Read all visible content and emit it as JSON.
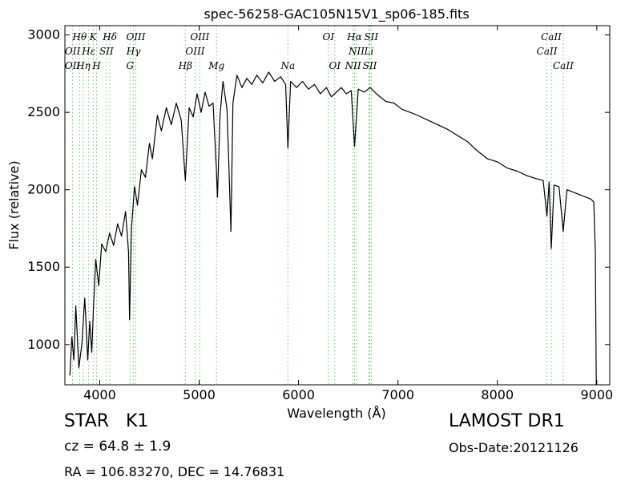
{
  "chart_data": {
    "type": "line",
    "title": "spec-56258-GAC105N15V1_sp06-185.fits",
    "xlabel": "Wavelength (Å)",
    "ylabel": "Flux (relative)",
    "xlim": [
      3650,
      9130
    ],
    "ylim": [
      740,
      3060
    ],
    "x_ticks": [
      4000,
      5000,
      6000,
      7000,
      8000,
      9000
    ],
    "y_ticks": [
      1000,
      1500,
      2000,
      2500,
      3000
    ],
    "x_tick_labels": [
      "4000",
      "5000",
      "6000",
      "7000",
      "8000",
      "9000"
    ],
    "y_tick_labels": [
      "1000",
      "1500",
      "2000",
      "2500",
      "3000"
    ],
    "grid": false,
    "series": [
      {
        "color": "#000000",
        "points": [
          [
            3700,
            800
          ],
          [
            3720,
            1050
          ],
          [
            3740,
            900
          ],
          [
            3760,
            1250
          ],
          [
            3790,
            850
          ],
          [
            3820,
            1000
          ],
          [
            3850,
            1300
          ],
          [
            3880,
            900
          ],
          [
            3900,
            1150
          ],
          [
            3920,
            950
          ],
          [
            3940,
            1280
          ],
          [
            3960,
            1550
          ],
          [
            3990,
            1380
          ],
          [
            4020,
            1650
          ],
          [
            4060,
            1600
          ],
          [
            4100,
            1720
          ],
          [
            4140,
            1640
          ],
          [
            4180,
            1780
          ],
          [
            4220,
            1700
          ],
          [
            4260,
            1860
          ],
          [
            4290,
            1600
          ],
          [
            4300,
            1160
          ],
          [
            4320,
            1750
          ],
          [
            4350,
            2020
          ],
          [
            4380,
            1900
          ],
          [
            4420,
            2130
          ],
          [
            4460,
            2080
          ],
          [
            4500,
            2300
          ],
          [
            4530,
            2200
          ],
          [
            4580,
            2480
          ],
          [
            4620,
            2380
          ],
          [
            4670,
            2530
          ],
          [
            4720,
            2420
          ],
          [
            4770,
            2560
          ],
          [
            4820,
            2450
          ],
          [
            4861,
            2060
          ],
          [
            4900,
            2530
          ],
          [
            4940,
            2470
          ],
          [
            4980,
            2620
          ],
          [
            5020,
            2500
          ],
          [
            5060,
            2630
          ],
          [
            5100,
            2540
          ],
          [
            5140,
            2560
          ],
          [
            5172,
            2150
          ],
          [
            5184,
            1950
          ],
          [
            5210,
            2480
          ],
          [
            5240,
            2700
          ],
          [
            5280,
            2520
          ],
          [
            5300,
            2150
          ],
          [
            5320,
            1730
          ],
          [
            5340,
            2560
          ],
          [
            5380,
            2740
          ],
          [
            5430,
            2660
          ],
          [
            5480,
            2720
          ],
          [
            5530,
            2680
          ],
          [
            5580,
            2740
          ],
          [
            5640,
            2690
          ],
          [
            5700,
            2760
          ],
          [
            5760,
            2700
          ],
          [
            5820,
            2730
          ],
          [
            5870,
            2680
          ],
          [
            5893,
            2270
          ],
          [
            5920,
            2700
          ],
          [
            5980,
            2660
          ],
          [
            6040,
            2700
          ],
          [
            6100,
            2650
          ],
          [
            6160,
            2680
          ],
          [
            6220,
            2620
          ],
          [
            6280,
            2660
          ],
          [
            6330,
            2600
          ],
          [
            6380,
            2630
          ],
          [
            6430,
            2660
          ],
          [
            6480,
            2620
          ],
          [
            6530,
            2640
          ],
          [
            6563,
            2280
          ],
          [
            6600,
            2650
          ],
          [
            6660,
            2630
          ],
          [
            6720,
            2660
          ],
          [
            6800,
            2610
          ],
          [
            6880,
            2570
          ],
          [
            6960,
            2560
          ],
          [
            7040,
            2520
          ],
          [
            7120,
            2500
          ],
          [
            7200,
            2480
          ],
          [
            7300,
            2450
          ],
          [
            7400,
            2420
          ],
          [
            7500,
            2390
          ],
          [
            7600,
            2350
          ],
          [
            7700,
            2310
          ],
          [
            7800,
            2250
          ],
          [
            7900,
            2200
          ],
          [
            8000,
            2180
          ],
          [
            8100,
            2140
          ],
          [
            8200,
            2120
          ],
          [
            8300,
            2090
          ],
          [
            8400,
            2070
          ],
          [
            8460,
            2060
          ],
          [
            8498,
            1830
          ],
          [
            8520,
            2050
          ],
          [
            8542,
            1620
          ],
          [
            8570,
            2030
          ],
          [
            8620,
            2020
          ],
          [
            8662,
            1730
          ],
          [
            8700,
            2000
          ],
          [
            8780,
            1980
          ],
          [
            8860,
            1960
          ],
          [
            8940,
            1940
          ],
          [
            8970,
            1920
          ],
          [
            8985,
            1600
          ],
          [
            8995,
            740
          ]
        ]
      }
    ],
    "line_markers": [
      {
        "label": "Hθ",
        "x": 3798,
        "row": 1
      },
      {
        "label": "K",
        "x": 3934,
        "row": 1
      },
      {
        "label": "Hδ",
        "x": 4102,
        "row": 1
      },
      {
        "label": "OIII",
        "x": 4363,
        "row": 1
      },
      {
        "label": "OIII",
        "x": 5007,
        "row": 1
      },
      {
        "label": "OI",
        "x": 6300,
        "row": 1
      },
      {
        "label": "Hα",
        "x": 6563,
        "row": 1
      },
      {
        "label": "SII",
        "x": 6731,
        "row": 1
      },
      {
        "label": "CaII",
        "x": 8542,
        "row": 1
      },
      {
        "label": "OII",
        "x": 3727,
        "row": 2
      },
      {
        "label": "Hε",
        "x": 3889,
        "row": 2
      },
      {
        "label": "SII",
        "x": 4068,
        "row": 2
      },
      {
        "label": "Hγ",
        "x": 4340,
        "row": 2
      },
      {
        "label": "OIII",
        "x": 4959,
        "row": 2
      },
      {
        "label": "NII",
        "x": 6583,
        "row": 2
      },
      {
        "label": "Li",
        "x": 6708,
        "row": 2
      },
      {
        "label": "CaII",
        "x": 8498,
        "row": 2
      },
      {
        "label": "OII",
        "x": 3727,
        "row": 3
      },
      {
        "label": "Hη",
        "x": 3835,
        "row": 3
      },
      {
        "label": "H",
        "x": 3968,
        "row": 3
      },
      {
        "label": "G",
        "x": 4305,
        "row": 3
      },
      {
        "label": "Hβ",
        "x": 4861,
        "row": 3
      },
      {
        "label": "Mg",
        "x": 5175,
        "row": 3
      },
      {
        "label": "Na",
        "x": 5893,
        "row": 3
      },
      {
        "label": "OI",
        "x": 6364,
        "row": 3
      },
      {
        "label": "NII",
        "x": 6548,
        "row": 3
      },
      {
        "label": "SII",
        "x": 6717,
        "row": 3
      },
      {
        "label": "CaII",
        "x": 8662,
        "row": 3
      }
    ],
    "marker_color": "#66cc66"
  },
  "info": {
    "object_type": "STAR",
    "subclass": "K1",
    "survey": "LAMOST DR1",
    "cz": "cz = 64.8 ± 1.9",
    "obs_date": "Obs-Date:20121126",
    "coords": "RA = 106.83270, DEC = 14.76831"
  }
}
